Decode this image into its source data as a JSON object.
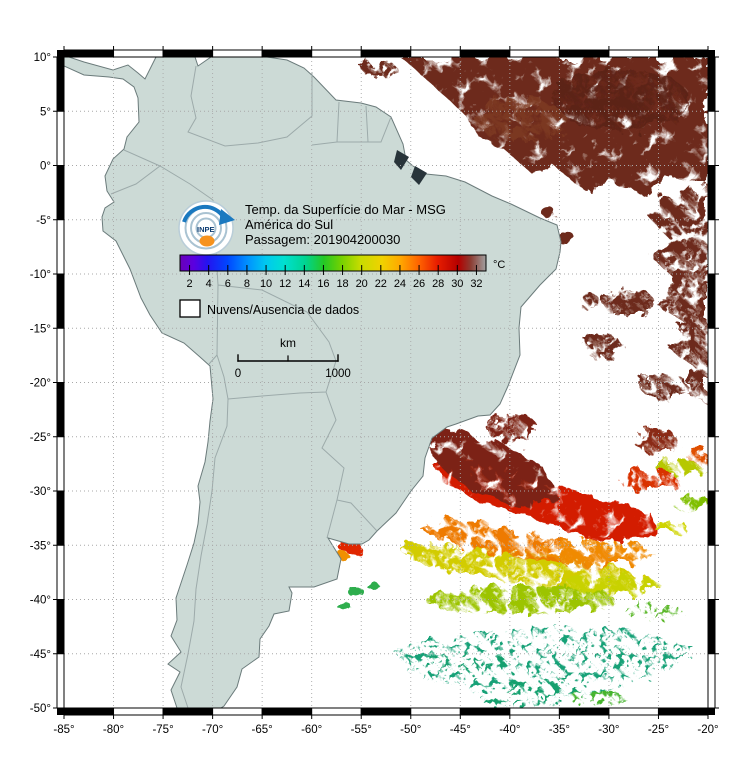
{
  "map": {
    "title": {
      "line1": "Temp. da Superfície do Mar - MSG",
      "line2": "América do Sul",
      "line3": "Passagem: 201904200030"
    },
    "logo_text": "INPE",
    "colorbar": {
      "unit": "°C",
      "value_min": 1,
      "value_max": 33,
      "tick_labels": [
        "2",
        "4",
        "6",
        "8",
        "10",
        "12",
        "14",
        "16",
        "18",
        "20",
        "22",
        "24",
        "26",
        "28",
        "30",
        "32"
      ],
      "stops": [
        {
          "p": 0.0,
          "c": "#6a00b8"
        },
        {
          "p": 0.045,
          "c": "#5b00e0"
        },
        {
          "p": 0.09,
          "c": "#2414f0"
        },
        {
          "p": 0.155,
          "c": "#0046ff"
        },
        {
          "p": 0.22,
          "c": "#0090ff"
        },
        {
          "p": 0.28,
          "c": "#00c8f0"
        },
        {
          "p": 0.34,
          "c": "#00e0d0"
        },
        {
          "p": 0.41,
          "c": "#00d490"
        },
        {
          "p": 0.47,
          "c": "#24c824"
        },
        {
          "p": 0.53,
          "c": "#78d200"
        },
        {
          "p": 0.59,
          "c": "#c8dc00"
        },
        {
          "p": 0.66,
          "c": "#f0d200"
        },
        {
          "p": 0.72,
          "c": "#ffa800"
        },
        {
          "p": 0.78,
          "c": "#ff6400"
        },
        {
          "p": 0.84,
          "c": "#e81e00"
        },
        {
          "p": 0.91,
          "c": "#b40000"
        },
        {
          "p": 0.95,
          "c": "#8c3c32"
        },
        {
          "p": 1.0,
          "c": "#a0a0a0"
        }
      ]
    },
    "legend": {
      "no_data_label": "Nuvens/Ausencia de dados"
    },
    "scalebar": {
      "unit": "km",
      "start_label": "0",
      "end_label": "1000"
    },
    "axes": {
      "x_tick_labels": [
        "-85°",
        "-80°",
        "-75°",
        "-70°",
        "-65°",
        "-60°",
        "-55°",
        "-50°",
        "-45°",
        "-40°",
        "-35°",
        "-30°",
        "-25°",
        "-20°"
      ],
      "y_tick_labels": [
        "10°",
        "5°",
        "0°",
        "-5°",
        "-10°",
        "-15°",
        "-20°",
        "-25°",
        "-30°",
        "-35°",
        "-40°",
        "-45°",
        "-50°"
      ]
    },
    "colors": {
      "land": "#ccdad6",
      "coast": "#6b7b7b",
      "inner_border": "#9aa8a8",
      "ocean_nodata": "#ffffff",
      "grid": "#a8a8a8",
      "frame": "#000000"
    }
  }
}
